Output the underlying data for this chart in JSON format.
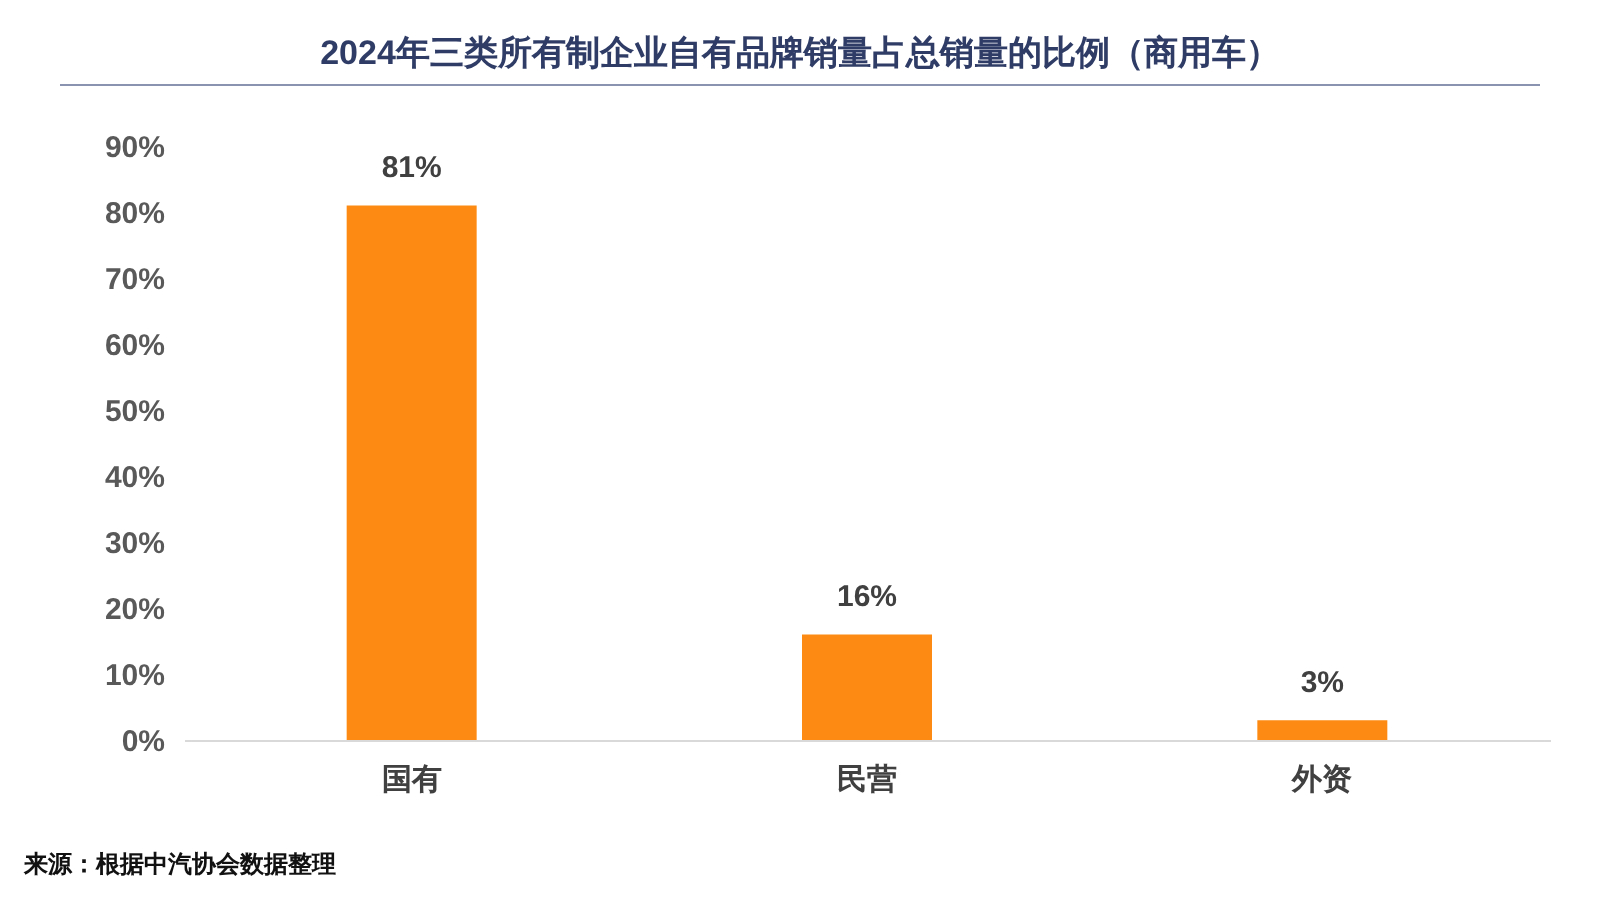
{
  "chart_data": {
    "type": "bar",
    "title": "2024年三类所有制企业自有品牌销量占总销量的比例（商用车）",
    "categories": [
      "国有",
      "民营",
      "外资"
    ],
    "values": [
      81,
      16,
      3
    ],
    "color": "#fd8b13",
    "value_labels": [
      "81%",
      "16%",
      "3%"
    ],
    "ylim": [
      0,
      90
    ],
    "yticks": [
      {
        "value": 0,
        "label": "0%"
      },
      {
        "value": 10,
        "label": "10%"
      },
      {
        "value": 20,
        "label": "20%"
      },
      {
        "value": 30,
        "label": "30%"
      },
      {
        "value": 40,
        "label": "40%"
      },
      {
        "value": 50,
        "label": "50%"
      },
      {
        "value": 60,
        "label": "60%"
      },
      {
        "value": 70,
        "label": "70%"
      },
      {
        "value": 80,
        "label": "80%"
      },
      {
        "value": 90,
        "label": "90%"
      }
    ],
    "grid": false,
    "annotations": [
      "来源：根据中汽协会数据整理"
    ]
  }
}
